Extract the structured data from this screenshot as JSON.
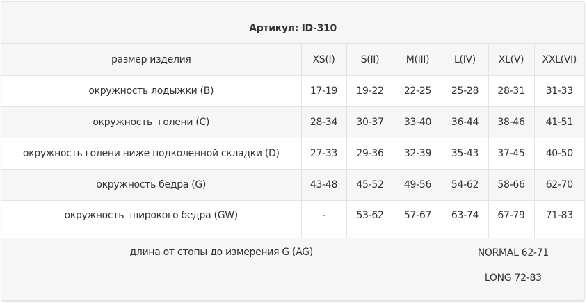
{
  "title": "Артикул: ID-310",
  "header": {
    "label": "размер изделия",
    "sizes": [
      "XS(I)",
      "S(II)",
      "M(III)",
      "L(IV)",
      "XL(V)",
      "XXL(VI)"
    ]
  },
  "rows": [
    {
      "label": "окружность лодыжки (B)",
      "values": [
        "17-19",
        "19-22",
        "22-25",
        "25-28",
        "28-31",
        "31-33"
      ]
    },
    {
      "label": "окружность  голени (C)",
      "values": [
        "28-34",
        "30-37",
        "33-40",
        "36-44",
        "38-46",
        "41-51"
      ]
    },
    {
      "label": "окружность голени ниже подколенной складки (D)",
      "values": [
        "27-33",
        "29-36",
        "32-39",
        "35-43",
        "37-45",
        "40-50"
      ]
    },
    {
      "label": "окружность бедра (G)",
      "values": [
        "43-48",
        "45-52",
        "49-56",
        "54-62",
        "58-66",
        "62-70"
      ]
    },
    {
      "label": "окружность  широкого бедра (GW)",
      "values": [
        "-",
        "53-62",
        "57-67",
        "63-74",
        "67-79",
        "71-83"
      ]
    }
  ],
  "length": {
    "label": "длина от стопы до измерения G (AG)",
    "normal": "NORMAL 62-71",
    "long": "LONG 72-83"
  }
}
